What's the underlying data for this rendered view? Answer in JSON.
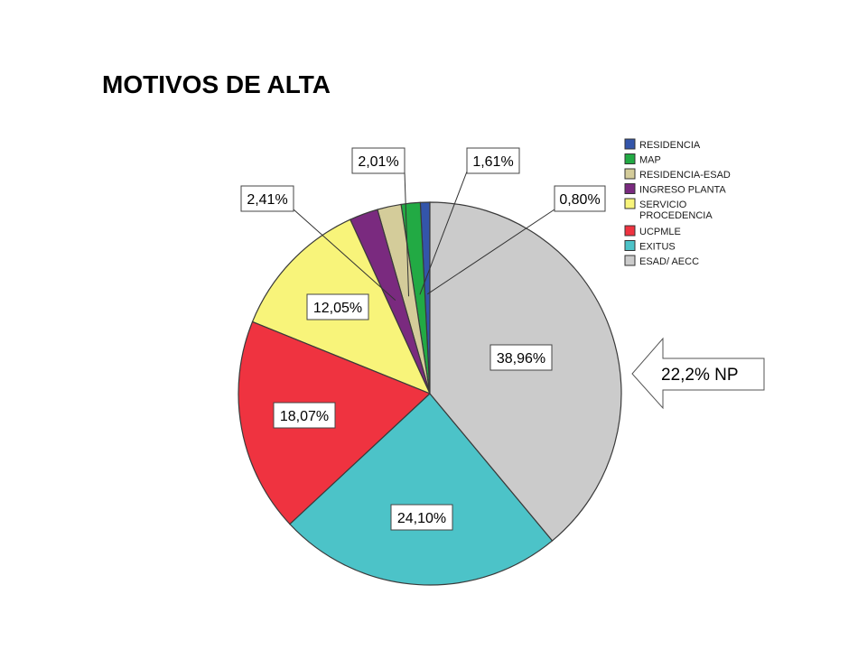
{
  "title": "MOTIVOS DE ALTA",
  "callout": {
    "text": "22,2% NP"
  },
  "chart_data": {
    "type": "pie",
    "title": "MOTIVOS DE ALTA",
    "slices": [
      {
        "name": "RESIDENCIA",
        "value": 0.8,
        "label": "0,80%",
        "color": "#3355aa"
      },
      {
        "name": "MAP",
        "value": 1.61,
        "label": "1,61%",
        "color": "#22aa44"
      },
      {
        "name": "RESIDENCIA-ESAD",
        "value": 2.01,
        "label": "2,01%",
        "color": "#d4cc9a"
      },
      {
        "name": "INGRESO PLANTA",
        "value": 2.41,
        "label": "2,41%",
        "color": "#7a2a7f"
      },
      {
        "name": "SERVICIO PROCEDENCIA",
        "value": 12.05,
        "label": "12,05%",
        "color": "#f8f47a"
      },
      {
        "name": "UCPMLE",
        "value": 18.07,
        "label": "18,07%",
        "color": "#ef3340"
      },
      {
        "name": "EXITUS",
        "value": 24.1,
        "label": "24,10%",
        "color": "#4cc3c8"
      },
      {
        "name": "ESAD/ AECC",
        "value": 38.96,
        "label": "38,96%",
        "color": "#cbcbcb"
      }
    ],
    "legend": [
      {
        "lines": [
          "RESIDENCIA"
        ],
        "color": "#3355aa"
      },
      {
        "lines": [
          "MAP"
        ],
        "color": "#22aa44"
      },
      {
        "lines": [
          "RESIDENCIA-ESAD"
        ],
        "color": "#d4cc9a"
      },
      {
        "lines": [
          "INGRESO PLANTA"
        ],
        "color": "#7a2a7f"
      },
      {
        "lines": [
          "SERVICIO",
          "PROCEDENCIA"
        ],
        "color": "#f8f47a"
      },
      {
        "lines": [
          "UCPMLE"
        ],
        "color": "#ef3340"
      },
      {
        "lines": [
          "EXITUS"
        ],
        "color": "#4cc3c8"
      },
      {
        "lines": [
          "ESAD/ AECC"
        ],
        "color": "#cbcbcb"
      }
    ],
    "legend_position": "top-right"
  }
}
